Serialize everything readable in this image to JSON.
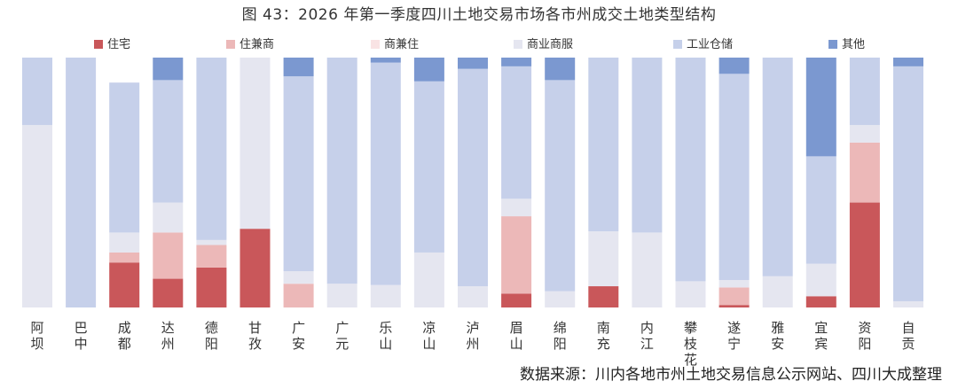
{
  "title": "图 43：2026 年第一季度四川土地交易市场各市州成交土地类型结构",
  "source": "数据来源：川内各地市州土地交易信息公示网站、四川大成整理",
  "chart_data": {
    "type": "bar",
    "stacked": true,
    "normalized": true,
    "ylim": [
      0,
      100
    ],
    "grid": false,
    "legend_position": "top",
    "categories": [
      "阿坝",
      "巴中",
      "成都",
      "达州",
      "德阳",
      "甘孜",
      "广安",
      "广元",
      "乐山",
      "凉山",
      "泸州",
      "眉山",
      "绵阳",
      "南充",
      "内江",
      "攀枝花",
      "遂宁",
      "雅安",
      "宜宾",
      "资阳",
      "自贡"
    ],
    "series": [
      {
        "name": "住宅",
        "color": "#c9575a",
        "values": [
          0,
          0,
          18,
          11.5,
          16,
          31.5,
          0,
          0,
          0,
          0,
          0,
          5.5,
          0,
          8.5,
          0,
          0,
          1,
          0,
          4.5,
          42,
          0
        ]
      },
      {
        "name": "住兼商",
        "color": "#ecb8b8",
        "values": [
          0,
          0,
          4,
          18.5,
          9,
          0,
          9.5,
          0,
          0,
          0,
          0,
          31,
          0,
          0,
          0,
          0,
          7,
          0,
          0,
          24,
          0
        ]
      },
      {
        "name": "商兼住",
        "color": "#f9e3e4",
        "values": [
          0,
          0,
          0,
          0,
          0,
          0,
          0,
          0,
          0,
          0,
          0,
          0,
          0,
          0,
          0,
          0,
          0,
          0,
          0,
          0,
          0
        ]
      },
      {
        "name": "商业商服",
        "color": "#e5e6f0",
        "values": [
          73,
          0,
          8,
          12,
          2,
          68.5,
          5,
          9.5,
          9,
          22,
          8.5,
          7,
          6.5,
          22,
          30,
          10.5,
          3,
          12.5,
          13,
          7,
          2.5
        ]
      },
      {
        "name": "工业仓储",
        "color": "#c6d0ea",
        "values": [
          27,
          100,
          60,
          49,
          73,
          0,
          78,
          90.5,
          89,
          68.5,
          87,
          53,
          84.5,
          69.5,
          70,
          89.5,
          82.5,
          87.5,
          43,
          27,
          94
        ]
      },
      {
        "name": "其他",
        "color": "#7b98d0",
        "values": [
          0,
          0,
          0,
          9,
          0,
          0,
          7.5,
          0,
          2,
          9.5,
          4.5,
          3.5,
          9,
          0,
          0,
          0,
          6.5,
          0,
          39.5,
          0,
          3.5
        ]
      }
    ]
  }
}
